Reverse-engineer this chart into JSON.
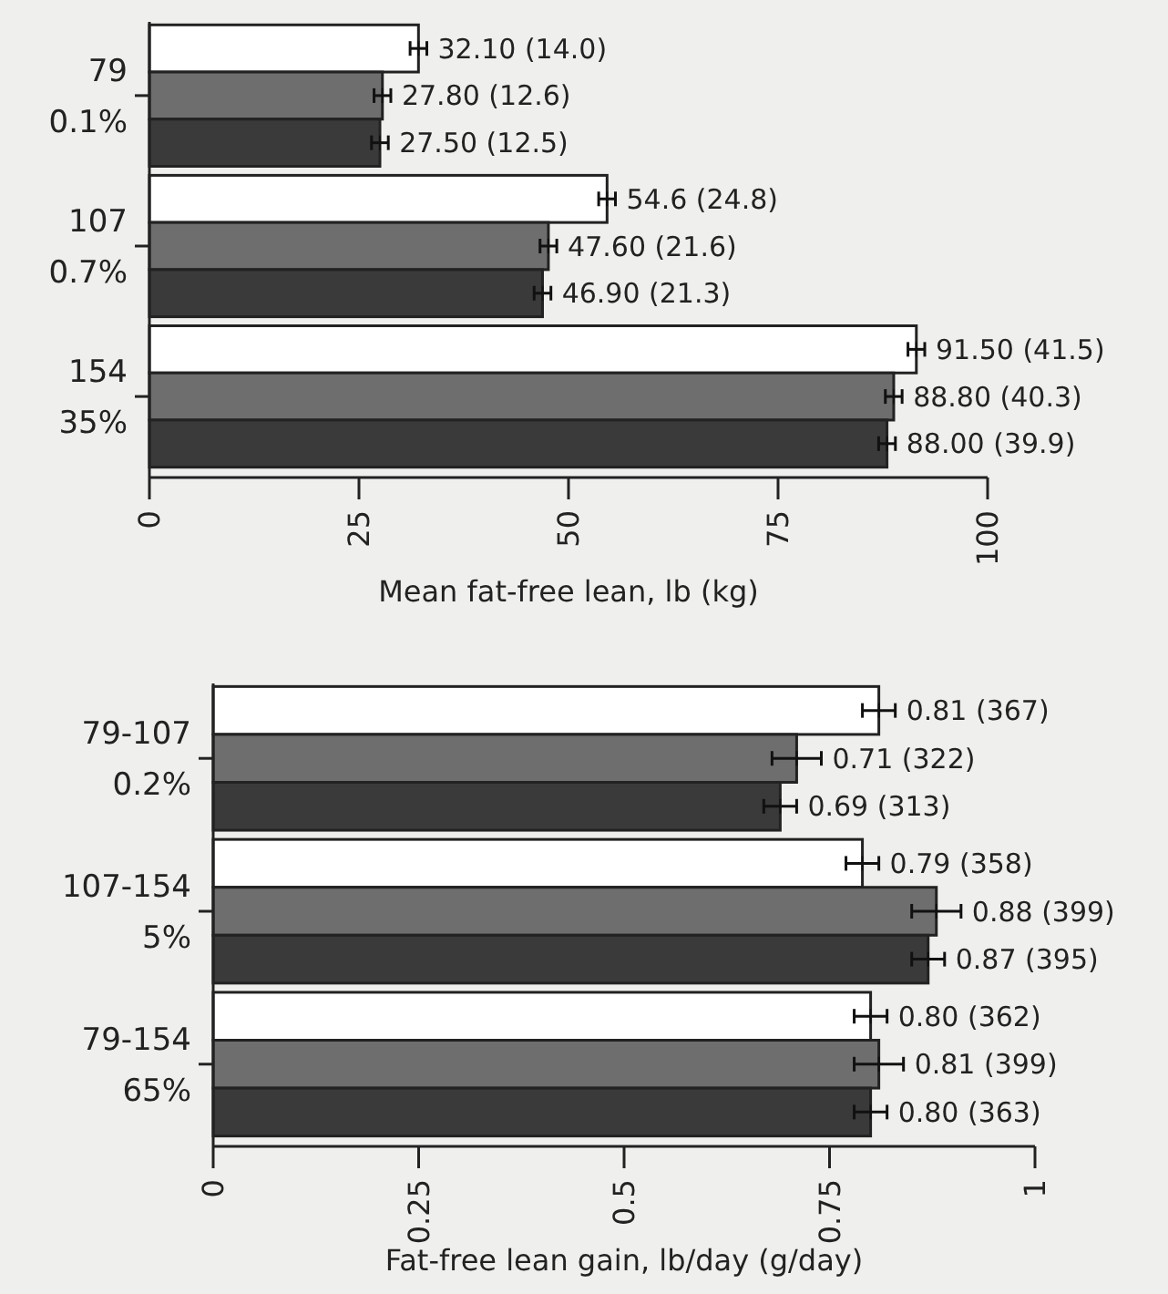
{
  "chart_data": [
    {
      "type": "bar",
      "orientation": "horizontal",
      "xlabel": "Mean fat-free lean, lb (kg)",
      "categories": [
        "79\n0.1%",
        "107\n0.7%",
        "154\n35%"
      ],
      "xlim": [
        0,
        100
      ],
      "xticks": [
        0,
        25,
        50,
        75,
        100
      ],
      "grid": false,
      "series": [
        {
          "color": "#ffffff",
          "values": [
            32.1,
            54.6,
            91.5
          ],
          "errors": [
            1,
            1,
            1
          ],
          "value_labels": [
            "32.10 (14.0)",
            "54.6 (24.8)",
            "91.50 (41.5)"
          ]
        },
        {
          "color": "#6e6e6e",
          "values": [
            27.8,
            47.6,
            88.8
          ],
          "errors": [
            1,
            1,
            1
          ],
          "value_labels": [
            "27.80 (12.6)",
            "47.60 (21.6)",
            "88.80 (40.3)"
          ]
        },
        {
          "color": "#3a3a3a",
          "values": [
            27.5,
            46.9,
            88.0
          ],
          "errors": [
            1,
            1,
            1
          ],
          "value_labels": [
            "27.50 (12.5)",
            "46.90 (21.3)",
            "88.00 (39.9)"
          ]
        }
      ]
    },
    {
      "type": "bar",
      "orientation": "horizontal",
      "xlabel": "Fat-free lean gain, lb/day (g/day)",
      "categories": [
        "79-107\n0.2%",
        "107-154\n5%",
        "79-154\n65%"
      ],
      "xlim": [
        0,
        1
      ],
      "xticks": [
        0,
        0.25,
        0.5,
        0.75,
        1
      ],
      "grid": false,
      "series": [
        {
          "color": "#ffffff",
          "values": [
            0.81,
            0.79,
            0.8
          ],
          "errors": [
            0.02,
            0.02,
            0.02
          ],
          "value_labels": [
            "0.81 (367)",
            "0.79 (358)",
            "0.80 (362)"
          ]
        },
        {
          "color": "#6e6e6e",
          "values": [
            0.71,
            0.88,
            0.81
          ],
          "errors": [
            0.03,
            0.03,
            0.03
          ],
          "value_labels": [
            "0.71 (322)",
            "0.88 (399)",
            "0.81 (399)"
          ]
        },
        {
          "color": "#3a3a3a",
          "values": [
            0.69,
            0.87,
            0.8
          ],
          "errors": [
            0.02,
            0.02,
            0.02
          ],
          "value_labels": [
            "0.69 (313)",
            "0.87 (395)",
            "0.80 (363)"
          ]
        }
      ]
    }
  ]
}
